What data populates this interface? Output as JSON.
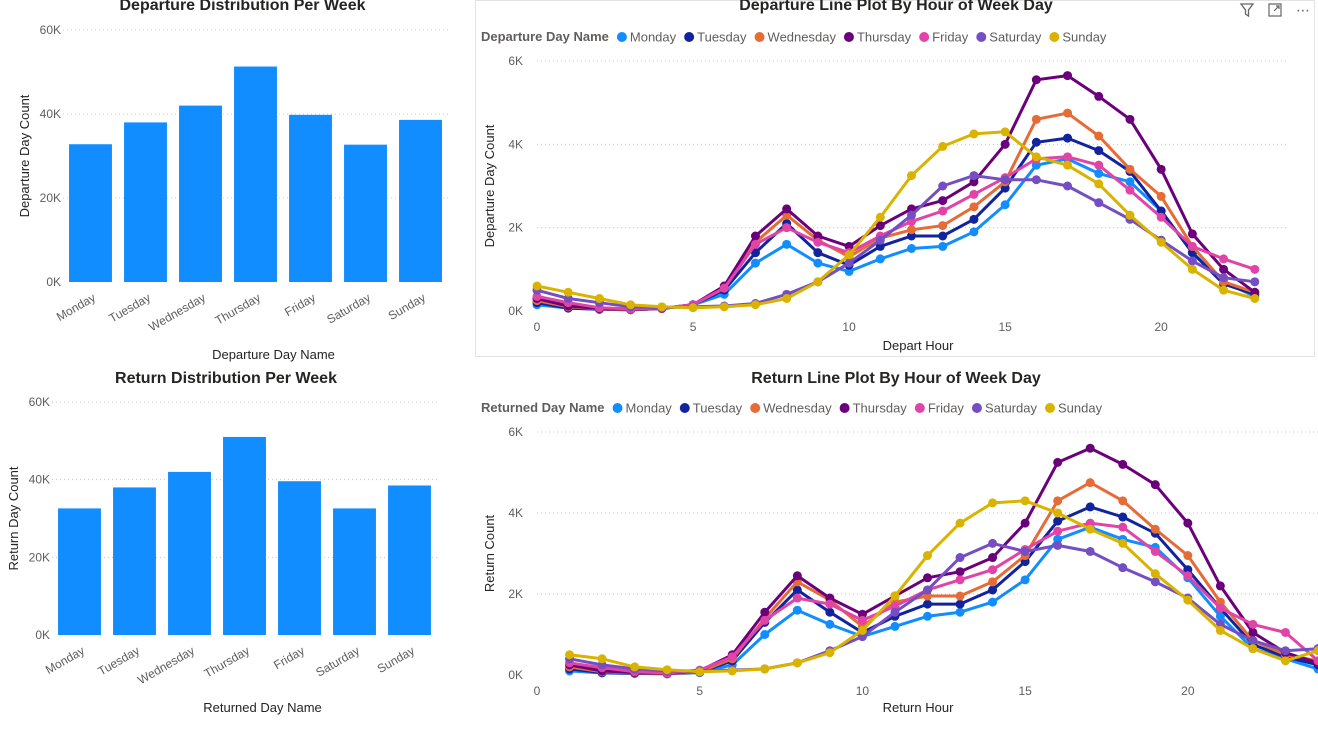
{
  "header_icons": {
    "filter": "filter-icon",
    "focus": "focus-mode-icon",
    "more": "more-options-icon",
    "more_label": "⋯"
  },
  "colors": {
    "bar": "#118DFF",
    "Monday": "#118DFF",
    "Tuesday": "#12239E",
    "Wednesday": "#E66C37",
    "Thursday": "#6B007B",
    "Friday": "#E044A7",
    "Saturday": "#744EC2",
    "Sunday": "#D9B300"
  },
  "chart_data": [
    {
      "id": "departure-bar",
      "type": "bar",
      "title": "Departure Distribution Per Week",
      "xlabel": "Departure Day Name",
      "ylabel": "Departure Day Count",
      "categories": [
        "Monday",
        "Tuesday",
        "Wednesday",
        "Thursday",
        "Friday",
        "Saturday",
        "Sunday"
      ],
      "values": [
        32800,
        38000,
        42000,
        51300,
        39800,
        32700,
        38600
      ],
      "yticks": [
        "0K",
        "20K",
        "40K",
        "60K"
      ],
      "ylim": [
        0,
        60000
      ],
      "grid": true
    },
    {
      "id": "departure-line",
      "type": "line",
      "title": "Departure Line Plot By Hour of Week Day",
      "xlabel": "Depart Hour",
      "ylabel": "Departure Day Count",
      "legend_title": "Departure Day Name",
      "legend_position": "top-left",
      "xticks": [
        "0",
        "5",
        "10",
        "15",
        "20"
      ],
      "yticks": [
        "0K",
        "2K",
        "4K",
        "6K"
      ],
      "xlim": [
        0,
        24
      ],
      "ylim": [
        0,
        6000
      ],
      "x": [
        0,
        1,
        2,
        3,
        4,
        5,
        6,
        7,
        8,
        9,
        10,
        11,
        12,
        13,
        14,
        15,
        16,
        17,
        18,
        19,
        20,
        21,
        22,
        23
      ],
      "series": [
        {
          "name": "Monday",
          "values": [
            150,
            70,
            40,
            30,
            60,
            150,
            400,
            1150,
            1600,
            1150,
            950,
            1250,
            1500,
            1550,
            1900,
            2550,
            3500,
            3650,
            3300,
            3100,
            2400,
            1400,
            700,
            350
          ]
        },
        {
          "name": "Tuesday",
          "values": [
            200,
            70,
            40,
            30,
            60,
            150,
            500,
            1400,
            2100,
            1400,
            1100,
            1550,
            1800,
            1800,
            2200,
            2950,
            4050,
            4150,
            3850,
            3350,
            2400,
            1400,
            650,
            400
          ]
        },
        {
          "name": "Wednesday",
          "values": [
            250,
            100,
            50,
            30,
            60,
            150,
            550,
            1650,
            2300,
            1700,
            1300,
            1750,
            1950,
            2050,
            2500,
            3100,
            4600,
            4750,
            4200,
            3400,
            2750,
            1550,
            700,
            450
          ]
        },
        {
          "name": "Thursday",
          "values": [
            300,
            120,
            60,
            40,
            60,
            150,
            600,
            1800,
            2450,
            1800,
            1550,
            2050,
            2450,
            2650,
            3100,
            4000,
            5550,
            5650,
            5150,
            4600,
            3400,
            1850,
            1000,
            450
          ]
        },
        {
          "name": "Friday",
          "values": [
            350,
            200,
            80,
            50,
            70,
            150,
            550,
            1600,
            2000,
            1650,
            1400,
            1800,
            2150,
            2400,
            2800,
            3200,
            3650,
            3700,
            3500,
            2900,
            2250,
            1550,
            1250,
            1000
          ]
        },
        {
          "name": "Saturday",
          "values": [
            500,
            300,
            200,
            100,
            80,
            100,
            120,
            180,
            400,
            700,
            1150,
            1700,
            2300,
            3000,
            3250,
            3150,
            3150,
            3000,
            2600,
            2200,
            1700,
            1200,
            800,
            700
          ]
        },
        {
          "name": "Sunday",
          "values": [
            600,
            450,
            300,
            150,
            100,
            80,
            100,
            150,
            300,
            700,
            1350,
            2250,
            3250,
            3950,
            4250,
            4300,
            3700,
            3500,
            3050,
            2300,
            1650,
            1000,
            500,
            300
          ]
        }
      ]
    },
    {
      "id": "return-bar",
      "type": "bar",
      "title": "Return Distribution Per Week",
      "xlabel": "Returned Day Name",
      "ylabel": "Return Day Count",
      "categories": [
        "Monday",
        "Tuesday",
        "Wednesday",
        "Thursday",
        "Friday",
        "Saturday",
        "Sunday"
      ],
      "values": [
        32600,
        38000,
        42000,
        51000,
        39600,
        32600,
        38500
      ],
      "yticks": [
        "0K",
        "20K",
        "40K",
        "60K"
      ],
      "ylim": [
        0,
        60000
      ],
      "grid": true
    },
    {
      "id": "return-line",
      "type": "line",
      "title": "Return Line Plot By Hour of Week Day",
      "xlabel": "Return Hour",
      "ylabel": "Return Count",
      "legend_title": "Returned Day Name",
      "legend_position": "top-left",
      "xticks": [
        "0",
        "5",
        "10",
        "15",
        "20"
      ],
      "yticks": [
        "0K",
        "2K",
        "4K",
        "6K"
      ],
      "xlim": [
        0,
        24
      ],
      "ylim": [
        0,
        6000
      ],
      "x": [
        1,
        2,
        3,
        4,
        5,
        6,
        7,
        8,
        9,
        10,
        11,
        12,
        13,
        14,
        15,
        16,
        17,
        18,
        19,
        20,
        21,
        22,
        23,
        24
      ],
      "series": [
        {
          "name": "Monday",
          "values": [
            100,
            50,
            40,
            30,
            60,
            250,
            1000,
            1600,
            1250,
            950,
            1200,
            1450,
            1550,
            1800,
            2350,
            3350,
            3650,
            3350,
            3150,
            2400,
            1450,
            650,
            400,
            150
          ]
        },
        {
          "name": "Tuesday",
          "values": [
            150,
            60,
            40,
            30,
            70,
            350,
            1300,
            2100,
            1550,
            1050,
            1450,
            1750,
            1750,
            2100,
            2800,
            3800,
            4150,
            3900,
            3500,
            2600,
            1650,
            750,
            450,
            250
          ]
        },
        {
          "name": "Wednesday",
          "values": [
            200,
            80,
            50,
            30,
            80,
            400,
            1400,
            2300,
            1850,
            1200,
            1800,
            1950,
            1950,
            2300,
            2950,
            4300,
            4750,
            4300,
            3600,
            2950,
            1800,
            850,
            500,
            350
          ]
        },
        {
          "name": "Thursday",
          "values": [
            250,
            100,
            60,
            40,
            100,
            500,
            1550,
            2450,
            1900,
            1500,
            1950,
            2400,
            2550,
            2900,
            3750,
            5250,
            5600,
            5200,
            4700,
            3750,
            2200,
            1050,
            550,
            300
          ]
        },
        {
          "name": "Friday",
          "values": [
            300,
            180,
            80,
            50,
            120,
            450,
            1350,
            1900,
            1750,
            1350,
            1700,
            2100,
            2350,
            2600,
            3100,
            3550,
            3750,
            3650,
            3050,
            2450,
            1650,
            1250,
            1050,
            350
          ]
        },
        {
          "name": "Saturday",
          "values": [
            400,
            250,
            150,
            100,
            100,
            120,
            150,
            300,
            600,
            950,
            1550,
            2100,
            2900,
            3250,
            3050,
            3200,
            3050,
            2650,
            2300,
            1900,
            1250,
            850,
            600,
            650
          ]
        },
        {
          "name": "Sunday",
          "values": [
            500,
            400,
            200,
            130,
            80,
            100,
            150,
            300,
            550,
            1100,
            1950,
            2950,
            3750,
            4250,
            4300,
            4000,
            3600,
            3250,
            2500,
            1850,
            1100,
            650,
            350,
            600
          ]
        }
      ]
    }
  ]
}
